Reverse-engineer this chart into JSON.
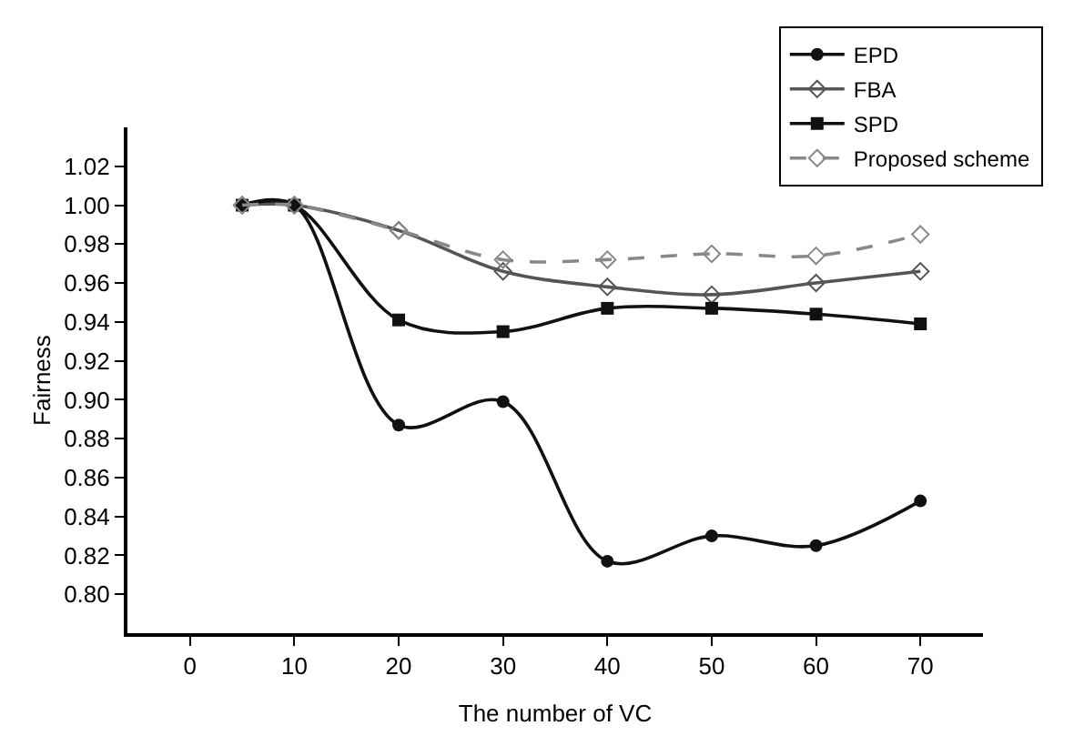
{
  "chart_data": {
    "type": "line",
    "xlabel": "The number of VC",
    "ylabel": "Fairness",
    "x": [
      5,
      10,
      20,
      30,
      40,
      50,
      60,
      70
    ],
    "series": [
      {
        "name": "EPD",
        "color": "#111111",
        "marker": "circle",
        "line_style": "solid",
        "values": [
          1.0,
          1.0,
          0.887,
          0.899,
          0.817,
          0.83,
          0.825,
          0.848
        ]
      },
      {
        "name": "FBA",
        "color": "#555555",
        "marker": "diamond",
        "line_style": "solid",
        "values": [
          1.0,
          1.0,
          0.987,
          0.966,
          0.958,
          0.954,
          0.96,
          0.966
        ]
      },
      {
        "name": "SPD",
        "color": "#111111",
        "marker": "square",
        "line_style": "solid",
        "values": [
          1.0,
          1.0,
          0.941,
          0.935,
          0.947,
          0.947,
          0.944,
          0.939
        ]
      },
      {
        "name": "Proposed scheme",
        "color": "#888888",
        "marker": "diamond",
        "line_style": "dashed",
        "values": [
          1.0,
          1.0,
          0.987,
          0.972,
          0.972,
          0.975,
          0.974,
          0.985
        ]
      }
    ],
    "xlim": [
      -6,
      76
    ],
    "xticks": [
      0,
      10,
      20,
      30,
      40,
      50,
      60,
      70
    ],
    "ylim": [
      0.78,
      1.04
    ],
    "yticks": [
      {
        "value": 0.8,
        "label": "0.80"
      },
      {
        "value": 0.82,
        "label": "0.82"
      },
      {
        "value": 0.84,
        "label": "0.84"
      },
      {
        "value": 0.86,
        "label": "0.86"
      },
      {
        "value": 0.88,
        "label": "0.88"
      },
      {
        "value": 0.9,
        "label": "0.90"
      },
      {
        "value": 0.92,
        "label": "0.92"
      },
      {
        "value": 0.94,
        "label": "0.94"
      },
      {
        "value": 0.96,
        "label": "0.96"
      },
      {
        "value": 0.98,
        "label": "0.98"
      },
      {
        "value": 1.0,
        "label": "1.00"
      },
      {
        "value": 1.02,
        "label": "1.02"
      }
    ],
    "legend": "top right"
  }
}
